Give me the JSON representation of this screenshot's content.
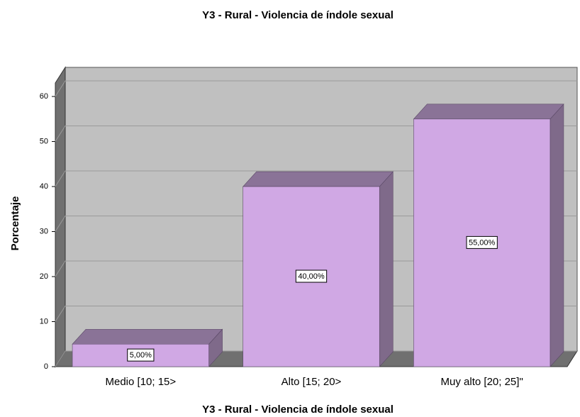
{
  "chart_data": {
    "type": "bar3d",
    "title": "Y3 - Rural  - Violencia de índole sexual",
    "x_label": "Y3 - Rural  - Violencia de índole sexual",
    "y_label": "Porcentaje",
    "categories": [
      "Medio [10; 15>",
      "Alto [15; 20>",
      "Muy alto [20; 25]\""
    ],
    "values": [
      5,
      40,
      55
    ],
    "value_labels": [
      "5,00%",
      "40,00%",
      "55,00%"
    ],
    "color": "#d0a8e4",
    "ylim": [
      0,
      63
    ],
    "yticks": [
      0,
      10,
      20,
      30,
      40,
      50,
      60
    ],
    "grid": true
  }
}
